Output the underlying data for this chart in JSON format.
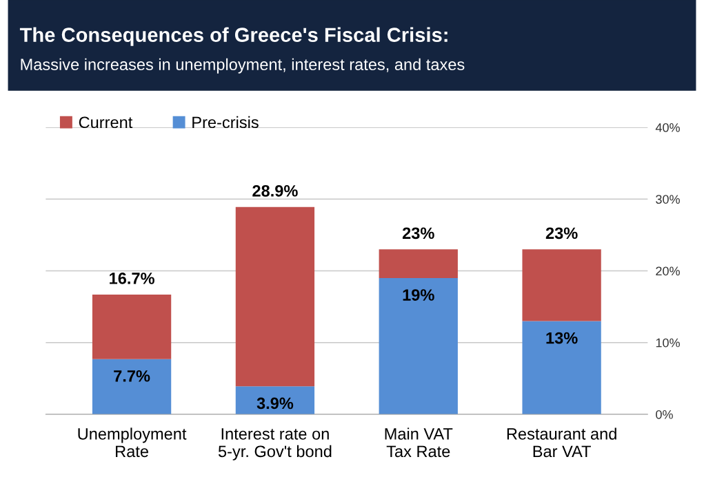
{
  "chart_data": {
    "type": "bar",
    "title": "The Consequences of Greece's Fiscal Crisis:",
    "subtitle": "Massive increases in unemployment, interest rates, and taxes",
    "categories": [
      "Unemployment\nRate",
      "Interest rate on\n5-yr. Gov't bond",
      "Main VAT\nTax Rate",
      "Restaurant and\nBar VAT"
    ],
    "stacked": true,
    "series": [
      {
        "name": "Pre-crisis",
        "color": "#558ed5",
        "values": [
          7.7,
          3.9,
          19,
          13
        ],
        "value_labels": [
          "7.7%",
          "3.9%",
          "19%",
          "13%"
        ]
      },
      {
        "name": "Current",
        "color": "#c0504d",
        "values": [
          9.0,
          25.0,
          4,
          10
        ]
      }
    ],
    "totals": [
      "16.7%",
      "28.9%",
      "23%",
      "23%"
    ],
    "ylim": [
      0,
      40
    ],
    "yticks": [
      {
        "value": 0,
        "label": "0%"
      },
      {
        "value": 10,
        "label": "10%"
      },
      {
        "value": 20,
        "label": "20%"
      },
      {
        "value": 30,
        "label": "30%"
      },
      {
        "value": 40,
        "label": "40%"
      }
    ],
    "grid": "y",
    "legend": "top left"
  }
}
